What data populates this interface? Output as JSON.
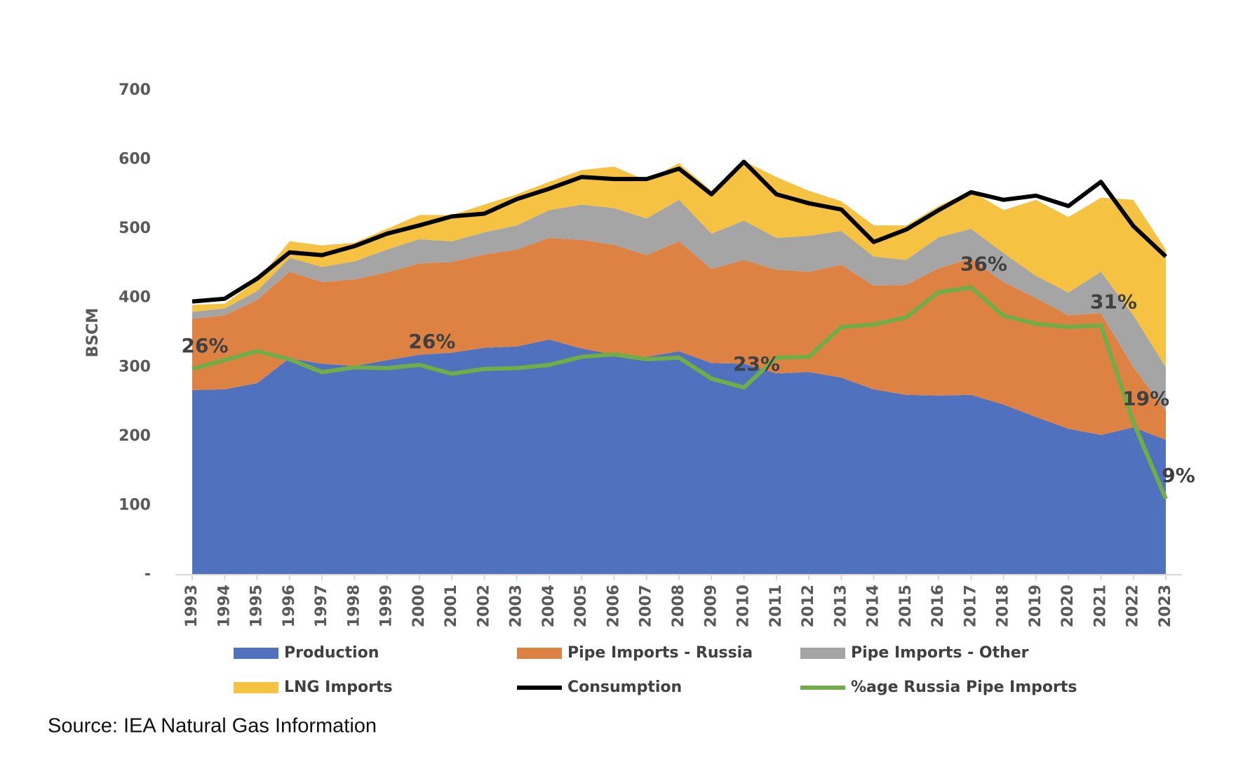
{
  "chart_data": {
    "type": "area",
    "y_label": "BSCM",
    "source": "Source: IEA Natural Gas Information",
    "categories": [
      "1993",
      "1994",
      "1995",
      "1996",
      "1997",
      "1998",
      "1999",
      "2000",
      "2001",
      "2002",
      "2003",
      "2004",
      "2005",
      "2006",
      "2007",
      "2008",
      "2009",
      "2010",
      "2011",
      "2012",
      "2013",
      "2014",
      "2015",
      "2016",
      "2017",
      "2018",
      "2019",
      "2020",
      "2021",
      "2022",
      "2023"
    ],
    "ylim": [
      0,
      700
    ],
    "yticks": [
      {
        "value": 0,
        "label": "-"
      },
      100,
      200,
      300,
      400,
      500,
      600,
      700
    ],
    "y2lim": [
      0,
      60
    ],
    "series": [
      {
        "name": "Production",
        "type": "area",
        "color": "#4f71be",
        "values": [
          267,
          268,
          277,
          313,
          305,
          302,
          310,
          318,
          321,
          328,
          330,
          340,
          327,
          318,
          315,
          323,
          306,
          305,
          291,
          293,
          285,
          268,
          260,
          259,
          260,
          246,
          228,
          211,
          202,
          213,
          195
        ]
      },
      {
        "name": "Pipe Imports - Russia",
        "type": "area",
        "color": "#de8244",
        "values": [
          103,
          107,
          120,
          125,
          118,
          125,
          127,
          132,
          131,
          135,
          140,
          147,
          157,
          159,
          147,
          159,
          136,
          150,
          150,
          145,
          163,
          150,
          159,
          184,
          197,
          177,
          172,
          164,
          176,
          87,
          42
        ]
      },
      {
        "name": "Pipe Imports - Other",
        "type": "area",
        "color": "#a5a5a5",
        "values": [
          10,
          10,
          13,
          20,
          22,
          26,
          33,
          35,
          30,
          32,
          35,
          40,
          51,
          53,
          53,
          60,
          51,
          57,
          46,
          52,
          49,
          42,
          36,
          45,
          43,
          42,
          32,
          33,
          60,
          75,
          63
        ]
      },
      {
        "name": "LNG Imports",
        "type": "area",
        "color": "#f5c242",
        "values": [
          10,
          7,
          15,
          24,
          31,
          27,
          30,
          35,
          38,
          40,
          45,
          41,
          50,
          60,
          55,
          53,
          62,
          86,
          88,
          65,
          43,
          45,
          50,
          45,
          55,
          62,
          110,
          109,
          107,
          167,
          170
        ]
      },
      {
        "name": "Consumption",
        "type": "line",
        "color": "#000000",
        "values": [
          395,
          399,
          428,
          466,
          462,
          475,
          493,
          505,
          518,
          522,
          543,
          558,
          575,
          572,
          572,
          587,
          550,
          597,
          550,
          537,
          528,
          481,
          499,
          527,
          553,
          542,
          548,
          533,
          568,
          504,
          460
        ]
      },
      {
        "name": "%age Russia Pipe Imports",
        "type": "line",
        "axis": "y2",
        "color": "#70ad47",
        "values": [
          25.5,
          26.6,
          27.7,
          26.7,
          25.1,
          25.7,
          25.6,
          26.0,
          24.9,
          25.5,
          25.6,
          26.0,
          27.0,
          27.3,
          26.7,
          26.9,
          24.3,
          23.2,
          26.9,
          27.0,
          30.7,
          31.0,
          31.9,
          35.0,
          35.6,
          32.1,
          31.1,
          30.7,
          30.9,
          18.9,
          9.4
        ],
        "value_labels": [
          "26%",
          null,
          null,
          null,
          null,
          null,
          null,
          "26%",
          null,
          null,
          null,
          null,
          null,
          null,
          null,
          null,
          null,
          "23%",
          null,
          null,
          null,
          null,
          null,
          null,
          "36%",
          null,
          null,
          null,
          "31%",
          "19%",
          "9%"
        ]
      }
    ]
  }
}
